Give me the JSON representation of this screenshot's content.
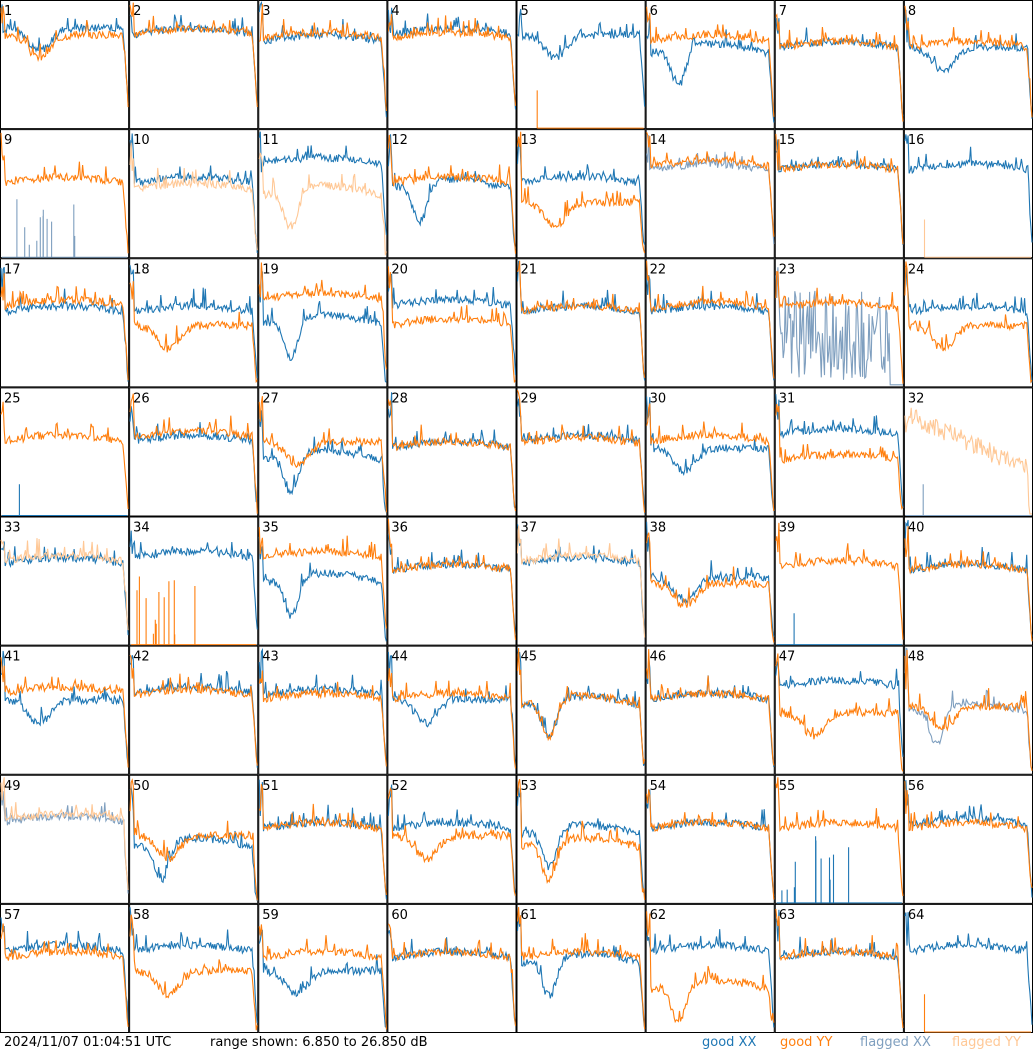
{
  "footer": {
    "timestamp": "2024/11/07 01:04:51 UTC",
    "range": "range shown: 6.850 to 26.850 dB",
    "legend_good_xx": "good XX",
    "legend_good_yy": "good YY",
    "legend_flagged_xx": "flagged XX",
    "legend_flagged_yy": "flagged YY"
  },
  "colors": {
    "good_xx": "#1f77b4",
    "good_yy": "#ff7f0e",
    "flagged_xx": "#7f9fbf",
    "flagged_yy": "#ffc896",
    "grid_line": "#000000",
    "background": "#ffffff"
  },
  "chart_data": {
    "type": "line",
    "layout": "8x8 small multiples (antenna spectra)",
    "ylim": [
      6.85,
      26.85
    ],
    "yunit": "dB",
    "grid": false,
    "legend": "bottom-right",
    "panels": [
      {
        "id": "1",
        "xx": {
          "shape": "dip",
          "level": 0.25,
          "flag": false
        },
        "yy": {
          "shape": "dip",
          "level": 0.3,
          "flag": false,
          "drop": true
        }
      },
      {
        "id": "2",
        "xx": {
          "shape": "flat",
          "level": 0.3,
          "flag": false
        },
        "yy": {
          "shape": "flat",
          "level": 0.3,
          "flag": false
        }
      },
      {
        "id": "3",
        "xx": {
          "shape": "flat",
          "level": 0.35,
          "flag": false
        },
        "yy": {
          "shape": "flat",
          "level": 0.33,
          "flag": false
        }
      },
      {
        "id": "4",
        "xx": {
          "shape": "flat",
          "level": 0.3,
          "flag": false
        },
        "yy": {
          "shape": "flat",
          "level": 0.33,
          "flag": false
        }
      },
      {
        "id": "5",
        "xx": {
          "shape": "dip",
          "level": 0.3,
          "flag": false
        },
        "yy": {
          "shape": "empty",
          "flag": false
        }
      },
      {
        "id": "6",
        "xx": {
          "shape": "deepdip",
          "level": 0.45,
          "flag": false
        },
        "yy": {
          "shape": "flat",
          "level": 0.35,
          "flag": false
        }
      },
      {
        "id": "7",
        "xx": {
          "shape": "flat",
          "level": 0.4,
          "flag": false
        },
        "yy": {
          "shape": "flat",
          "level": 0.4,
          "flag": false
        }
      },
      {
        "id": "8",
        "xx": {
          "shape": "dip",
          "level": 0.4,
          "flag": false
        },
        "yy": {
          "shape": "flat",
          "level": 0.4,
          "flag": false
        }
      },
      {
        "id": "9",
        "xx": {
          "shape": "spikes",
          "level": 0.9,
          "flag": true
        },
        "yy": {
          "shape": "flat",
          "level": 0.45,
          "flag": false
        }
      },
      {
        "id": "10",
        "xx": {
          "shape": "flat",
          "level": 0.45,
          "flag": false
        },
        "yy": {
          "shape": "flat",
          "level": 0.5,
          "flag": true
        }
      },
      {
        "id": "11",
        "xx": {
          "shape": "flat",
          "level": 0.3,
          "flag": false
        },
        "yy": {
          "shape": "deepdip",
          "level": 0.55,
          "flag": true
        }
      },
      {
        "id": "12",
        "xx": {
          "shape": "deepdip",
          "level": 0.5,
          "flag": false
        },
        "yy": {
          "shape": "flat",
          "level": 0.45,
          "flag": false
        }
      },
      {
        "id": "13",
        "xx": {
          "shape": "flat",
          "level": 0.45,
          "flag": false
        },
        "yy": {
          "shape": "dip",
          "level": 0.6,
          "flag": false
        }
      },
      {
        "id": "14",
        "xx": {
          "shape": "flat",
          "level": 0.35,
          "flag": true
        },
        "yy": {
          "shape": "flat",
          "level": 0.32,
          "flag": false
        }
      },
      {
        "id": "15",
        "xx": {
          "shape": "flat",
          "level": 0.35,
          "flag": false
        },
        "yy": {
          "shape": "flat",
          "level": 0.35,
          "flag": false
        }
      },
      {
        "id": "16",
        "xx": {
          "shape": "flat",
          "level": 0.35,
          "flag": false
        },
        "yy": {
          "shape": "empty",
          "flag": true
        }
      },
      {
        "id": "17",
        "xx": {
          "shape": "flat",
          "level": 0.45,
          "flag": false
        },
        "yy": {
          "shape": "flat",
          "level": 0.4,
          "flag": false
        }
      },
      {
        "id": "18",
        "xx": {
          "shape": "flat",
          "level": 0.45,
          "flag": false
        },
        "yy": {
          "shape": "dip",
          "level": 0.55,
          "flag": false
        }
      },
      {
        "id": "19",
        "xx": {
          "shape": "deepdip",
          "level": 0.55,
          "flag": false
        },
        "yy": {
          "shape": "flat",
          "level": 0.35,
          "flag": false
        }
      },
      {
        "id": "20",
        "xx": {
          "shape": "flat",
          "level": 0.4,
          "flag": false
        },
        "yy": {
          "shape": "flat",
          "level": 0.55,
          "flag": false
        }
      },
      {
        "id": "21",
        "xx": {
          "shape": "flat",
          "level": 0.45,
          "flag": false
        },
        "yy": {
          "shape": "flat",
          "level": 0.45,
          "flag": false
        }
      },
      {
        "id": "22",
        "xx": {
          "shape": "flat",
          "level": 0.45,
          "flag": false
        },
        "yy": {
          "shape": "flat",
          "level": 0.42,
          "flag": false
        }
      },
      {
        "id": "23",
        "xx": {
          "shape": "noise",
          "level": 0.6,
          "flag": true
        },
        "yy": {
          "shape": "flat",
          "level": 0.42,
          "flag": false
        }
      },
      {
        "id": "24",
        "xx": {
          "shape": "flat",
          "level": 0.45,
          "flag": false
        },
        "yy": {
          "shape": "dip",
          "level": 0.55,
          "flag": false
        }
      },
      {
        "id": "25",
        "xx": {
          "shape": "spike1",
          "level": 0.9,
          "flag": false
        },
        "yy": {
          "shape": "flat",
          "level": 0.45,
          "flag": false
        }
      },
      {
        "id": "26",
        "xx": {
          "shape": "flat",
          "level": 0.45,
          "flag": false
        },
        "yy": {
          "shape": "flat",
          "level": 0.42,
          "flag": false
        }
      },
      {
        "id": "27",
        "xx": {
          "shape": "deepdip",
          "level": 0.6,
          "flag": false
        },
        "yy": {
          "shape": "dip",
          "level": 0.45,
          "flag": false
        }
      },
      {
        "id": "28",
        "xx": {
          "shape": "flat",
          "level": 0.5,
          "flag": false
        },
        "yy": {
          "shape": "flat",
          "level": 0.5,
          "flag": false
        }
      },
      {
        "id": "29",
        "xx": {
          "shape": "flat",
          "level": 0.45,
          "flag": false
        },
        "yy": {
          "shape": "flat",
          "level": 0.47,
          "flag": false
        }
      },
      {
        "id": "30",
        "xx": {
          "shape": "dip",
          "level": 0.5,
          "flag": false
        },
        "yy": {
          "shape": "flat",
          "level": 0.45,
          "flag": false
        }
      },
      {
        "id": "31",
        "xx": {
          "shape": "flat",
          "level": 0.4,
          "flag": false
        },
        "yy": {
          "shape": "flat",
          "level": 0.6,
          "flag": false
        }
      },
      {
        "id": "32",
        "xx": {
          "shape": "spike1",
          "level": 0.9,
          "flag": true
        },
        "yy": {
          "shape": "noisydecay",
          "level": 0.55,
          "flag": true
        }
      },
      {
        "id": "33",
        "xx": {
          "shape": "flat",
          "level": 0.4,
          "flag": false
        },
        "yy": {
          "shape": "flat",
          "level": 0.38,
          "flag": true
        }
      },
      {
        "id": "34",
        "xx": {
          "shape": "flat",
          "level": 0.35,
          "flag": false
        },
        "yy": {
          "shape": "spikes",
          "level": 0.9,
          "flag": false
        }
      },
      {
        "id": "35",
        "xx": {
          "shape": "deepdip",
          "level": 0.55,
          "flag": false
        },
        "yy": {
          "shape": "flat",
          "level": 0.35,
          "flag": false
        }
      },
      {
        "id": "36",
        "xx": {
          "shape": "flat",
          "level": 0.45,
          "flag": false
        },
        "yy": {
          "shape": "flat",
          "level": 0.45,
          "flag": false
        }
      },
      {
        "id": "37",
        "xx": {
          "shape": "flat",
          "level": 0.4,
          "flag": false
        },
        "yy": {
          "shape": "flat",
          "level": 0.38,
          "flag": true
        }
      },
      {
        "id": "38",
        "xx": {
          "shape": "dip",
          "level": 0.5,
          "flag": false
        },
        "yy": {
          "shape": "dip",
          "level": 0.55,
          "flag": false
        }
      },
      {
        "id": "39",
        "xx": {
          "shape": "spike1",
          "level": 0.9,
          "flag": false
        },
        "yy": {
          "shape": "flat",
          "level": 0.42,
          "flag": false
        }
      },
      {
        "id": "40",
        "xx": {
          "shape": "flat",
          "level": 0.45,
          "flag": false
        },
        "yy": {
          "shape": "flat",
          "level": 0.45,
          "flag": false
        }
      },
      {
        "id": "41",
        "xx": {
          "shape": "dip",
          "level": 0.45,
          "flag": false
        },
        "yy": {
          "shape": "flat",
          "level": 0.4,
          "flag": false
        }
      },
      {
        "id": "42",
        "xx": {
          "shape": "flat",
          "level": 0.4,
          "flag": false
        },
        "yy": {
          "shape": "flat",
          "level": 0.42,
          "flag": false
        }
      },
      {
        "id": "43",
        "xx": {
          "shape": "flat",
          "level": 0.42,
          "flag": false
        },
        "yy": {
          "shape": "flat",
          "level": 0.45,
          "flag": false
        }
      },
      {
        "id": "44",
        "xx": {
          "shape": "dip",
          "level": 0.45,
          "flag": false
        },
        "yy": {
          "shape": "flat",
          "level": 0.45,
          "flag": false
        }
      },
      {
        "id": "45",
        "xx": {
          "shape": "deepdip",
          "level": 0.5,
          "flag": false
        },
        "yy": {
          "shape": "deepdip",
          "level": 0.5,
          "flag": false
        }
      },
      {
        "id": "46",
        "xx": {
          "shape": "flat",
          "level": 0.45,
          "flag": false
        },
        "yy": {
          "shape": "flat",
          "level": 0.45,
          "flag": false
        }
      },
      {
        "id": "47",
        "xx": {
          "shape": "flat",
          "level": 0.35,
          "flag": false
        },
        "yy": {
          "shape": "dip",
          "level": 0.55,
          "flag": false
        }
      },
      {
        "id": "48",
        "xx": {
          "shape": "deepdip",
          "level": 0.55,
          "flag": true
        },
        "yy": {
          "shape": "dip",
          "level": 0.5,
          "flag": false
        }
      },
      {
        "id": "49",
        "xx": {
          "shape": "flat",
          "level": 0.4,
          "flag": true
        },
        "yy": {
          "shape": "flat",
          "level": 0.38,
          "flag": true
        }
      },
      {
        "id": "50",
        "xx": {
          "shape": "deepdip",
          "level": 0.6,
          "flag": false
        },
        "yy": {
          "shape": "dip",
          "level": 0.5,
          "flag": false
        }
      },
      {
        "id": "51",
        "xx": {
          "shape": "flat",
          "level": 0.45,
          "flag": false
        },
        "yy": {
          "shape": "flat",
          "level": 0.45,
          "flag": false
        }
      },
      {
        "id": "52",
        "xx": {
          "shape": "flat",
          "level": 0.45,
          "flag": false
        },
        "yy": {
          "shape": "dip",
          "level": 0.5,
          "flag": false
        }
      },
      {
        "id": "53",
        "xx": {
          "shape": "deepdip",
          "level": 0.5,
          "flag": false
        },
        "yy": {
          "shape": "deepdip",
          "level": 0.6,
          "flag": false
        }
      },
      {
        "id": "54",
        "xx": {
          "shape": "flat",
          "level": 0.45,
          "flag": false
        },
        "yy": {
          "shape": "flat",
          "level": 0.45,
          "flag": false
        }
      },
      {
        "id": "55",
        "xx": {
          "shape": "spikes",
          "level": 0.9,
          "flag": false
        },
        "yy": {
          "shape": "flat",
          "level": 0.45,
          "flag": false
        }
      },
      {
        "id": "56",
        "xx": {
          "shape": "flat",
          "level": 0.42,
          "flag": false
        },
        "yy": {
          "shape": "flat",
          "level": 0.45,
          "flag": false
        }
      },
      {
        "id": "57",
        "xx": {
          "shape": "flat",
          "level": 0.4,
          "flag": false
        },
        "yy": {
          "shape": "flat",
          "level": 0.45,
          "flag": false
        }
      },
      {
        "id": "58",
        "xx": {
          "shape": "flat",
          "level": 0.4,
          "flag": false
        },
        "yy": {
          "shape": "dip",
          "level": 0.55,
          "flag": false
        }
      },
      {
        "id": "59",
        "xx": {
          "shape": "dip",
          "level": 0.55,
          "flag": false
        },
        "yy": {
          "shape": "flat",
          "level": 0.45,
          "flag": false
        }
      },
      {
        "id": "60",
        "xx": {
          "shape": "flat",
          "level": 0.45,
          "flag": false
        },
        "yy": {
          "shape": "flat",
          "level": 0.45,
          "flag": false
        }
      },
      {
        "id": "61",
        "xx": {
          "shape": "deepdip",
          "level": 0.5,
          "flag": false
        },
        "yy": {
          "shape": "flat",
          "level": 0.45,
          "flag": false
        }
      },
      {
        "id": "62",
        "xx": {
          "shape": "flat",
          "level": 0.4,
          "flag": false
        },
        "yy": {
          "shape": "deepdip",
          "level": 0.7,
          "flag": false
        }
      },
      {
        "id": "63",
        "xx": {
          "shape": "flat",
          "level": 0.45,
          "flag": false
        },
        "yy": {
          "shape": "flat",
          "level": 0.45,
          "flag": false
        }
      },
      {
        "id": "64",
        "xx": {
          "shape": "flat",
          "level": 0.4,
          "flag": false
        },
        "yy": {
          "shape": "empty",
          "flag": false
        }
      }
    ]
  }
}
